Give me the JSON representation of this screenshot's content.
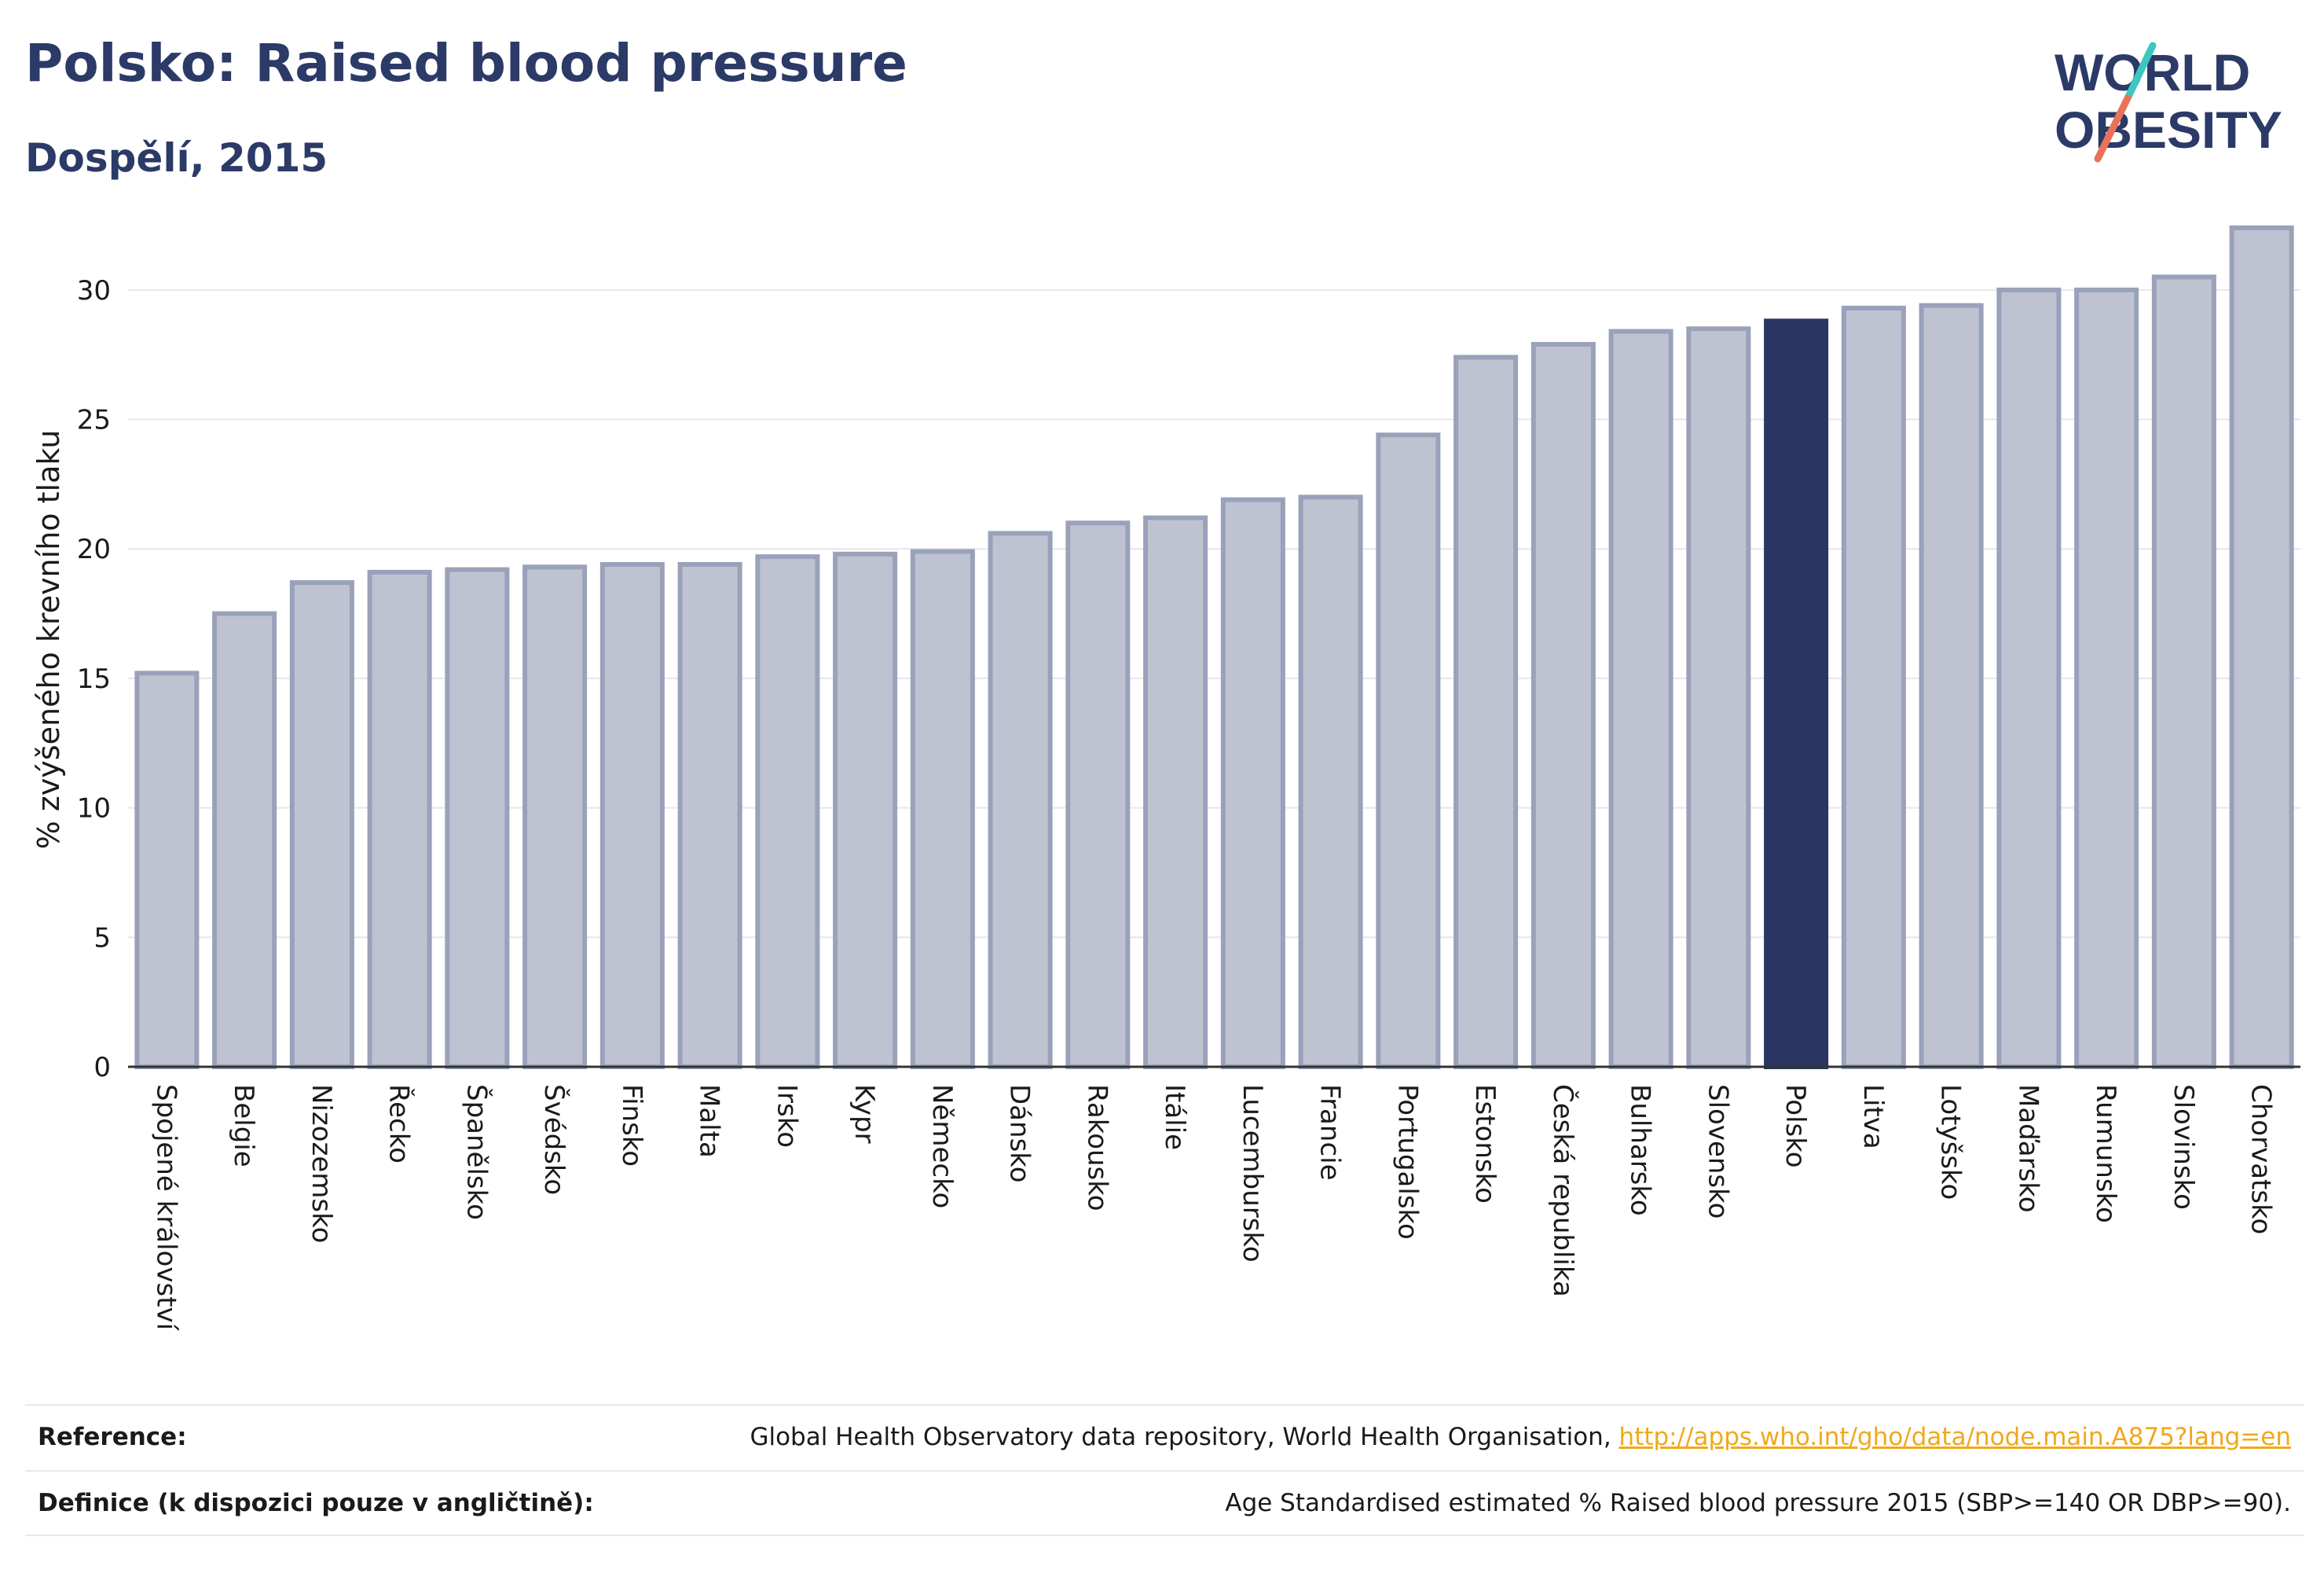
{
  "header": {
    "title": "Polsko: Raised blood pressure",
    "subtitle": "Dospělí, 2015"
  },
  "logo": {
    "line1": "WORLD",
    "line2": "OBESITY",
    "slash_colors": [
      "#3cc7c0",
      "#e8735a"
    ]
  },
  "colors": {
    "bar": "#bfc3d1",
    "bar_border": "#9aa1ba",
    "highlight": "#2b3561",
    "title": "#2b3a67",
    "link": "#f0a81c"
  },
  "chart_data": {
    "type": "bar",
    "ylabel": "% zvýšeného krevního tlaku",
    "xlabel": "",
    "ylim": [
      0,
      33
    ],
    "yticks": [
      0,
      5,
      10,
      15,
      20,
      25,
      30
    ],
    "grid": true,
    "highlight": "Polsko",
    "categories": [
      "Spojené království",
      "Belgie",
      "Nizozemsko",
      "Řecko",
      "Španělsko",
      "Švédsko",
      "Finsko",
      "Malta",
      "Irsko",
      "Kypr",
      "Německo",
      "Dánsko",
      "Rakousko",
      "Itálie",
      "Lucembursko",
      "Francie",
      "Portugalsko",
      "Estonsko",
      "Česká republika",
      "Bulharsko",
      "Slovensko",
      "Polsko",
      "Litva",
      "Lotyšsko",
      "Maďarsko",
      "Rumunsko",
      "Slovinsko",
      "Chorvatsko"
    ],
    "values": [
      15.2,
      17.5,
      18.7,
      19.1,
      19.2,
      19.3,
      19.4,
      19.4,
      19.7,
      19.8,
      19.9,
      20.6,
      21.0,
      21.2,
      21.9,
      22.0,
      24.4,
      27.4,
      27.9,
      28.4,
      28.5,
      28.8,
      29.3,
      29.4,
      30.0,
      30.0,
      30.5,
      32.4
    ]
  },
  "footer": {
    "reference_label": "Reference:",
    "reference_text": "Global Health Observatory data repository, World Health Organisation, ",
    "reference_link": "http://apps.who.int/gho/data/node.main.A875?lang=en",
    "definition_label": "Definice (k dispozici pouze v angličtině):",
    "definition_text": "Age Standardised estimated % Raised blood pressure 2015 (SBP>=140 OR DBP>=90)."
  }
}
